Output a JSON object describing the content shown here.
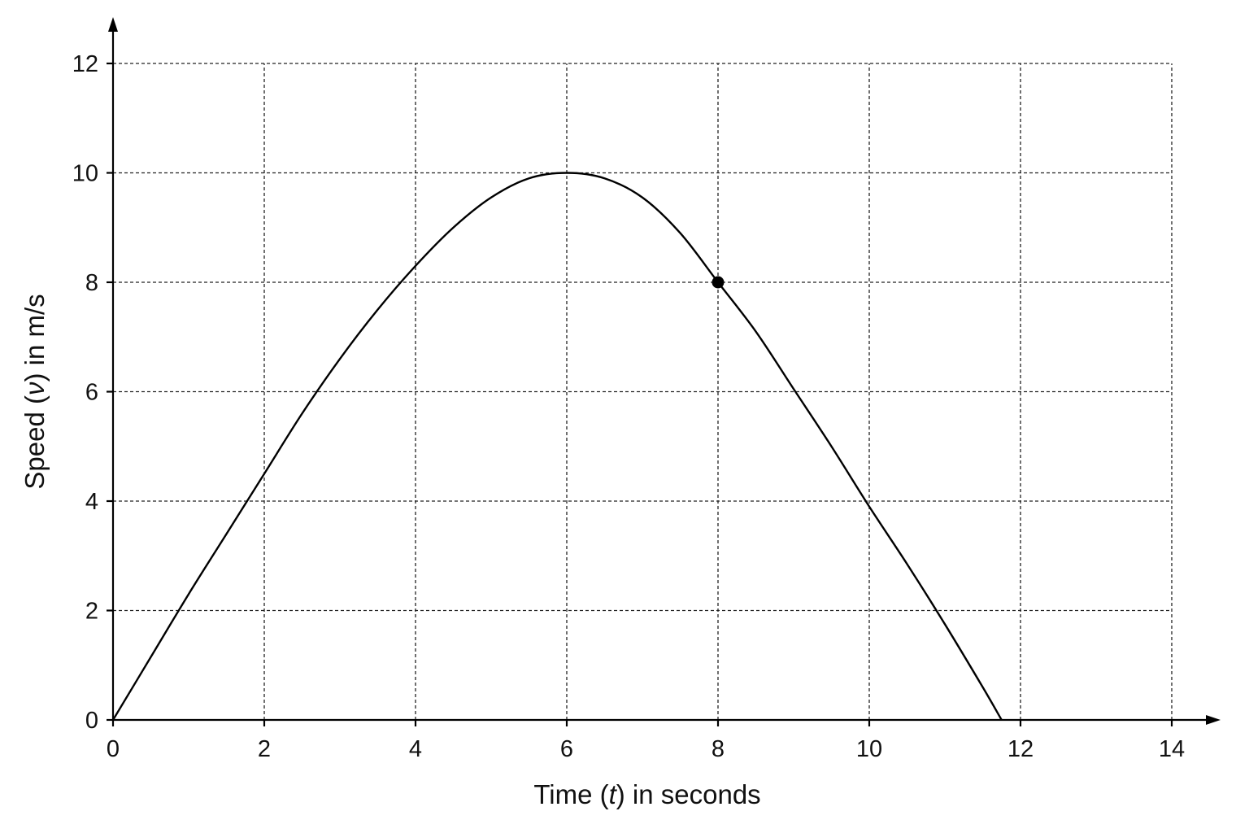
{
  "chart_data": {
    "type": "line",
    "xlabel": {
      "prefix": "Time (",
      "var": "t",
      "suffix": ") in seconds"
    },
    "ylabel": {
      "prefix": "Speed (",
      "var": "ν",
      "suffix": ") in m/s"
    },
    "xlim": [
      0,
      14
    ],
    "ylim": [
      0,
      12
    ],
    "x_ticks": [
      0,
      2,
      4,
      6,
      8,
      10,
      12,
      14
    ],
    "y_ticks": [
      0,
      2,
      4,
      6,
      8,
      10,
      12
    ],
    "grid": true,
    "series": [
      {
        "x": [
          0,
          0.5,
          1,
          1.5,
          2,
          2.5,
          3,
          3.5,
          4,
          4.5,
          5,
          5.5,
          6,
          6.5,
          7,
          7.5,
          8,
          8.5,
          9,
          9.5,
          10,
          10.5,
          11,
          11.5,
          11.75
        ],
        "y": [
          0,
          1.15,
          2.3,
          3.4,
          4.5,
          5.6,
          6.6,
          7.5,
          8.3,
          9.0,
          9.55,
          9.9,
          10.0,
          9.9,
          9.55,
          8.9,
          8.0,
          7.1,
          6.05,
          5.0,
          3.9,
          2.85,
          1.75,
          0.6,
          0
        ]
      }
    ],
    "highlighted_point": {
      "x": 8,
      "y": 8
    }
  }
}
